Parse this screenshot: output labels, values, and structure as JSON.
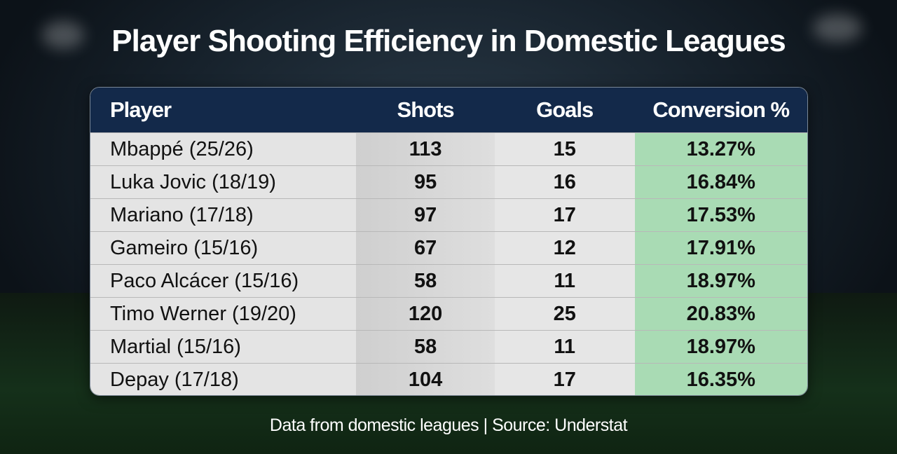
{
  "title": "Player Shooting Efficiency in Domestic Leagues",
  "headers": [
    "Player",
    "Shots",
    "Goals",
    "Conversion %"
  ],
  "rows": [
    {
      "player": "Mbappé (25/26)",
      "shots": "113",
      "goals": "15",
      "conversion": "13.27%"
    },
    {
      "player": "Luka Jovic (18/19)",
      "shots": "95",
      "goals": "16",
      "conversion": "16.84%"
    },
    {
      "player": "Mariano (17/18)",
      "shots": "97",
      "goals": "17",
      "conversion": "17.53%"
    },
    {
      "player": "Gameiro (15/16)",
      "shots": "67",
      "goals": "12",
      "conversion": "17.91%"
    },
    {
      "player": "Paco Alcácer (15/16)",
      "shots": "58",
      "goals": "11",
      "conversion": "18.97%"
    },
    {
      "player": "Timo Werner (19/20)",
      "shots": "120",
      "goals": "25",
      "conversion": "20.83%"
    },
    {
      "player": "Martial (15/16)",
      "shots": "58",
      "goals": "11",
      "conversion": "18.97%"
    },
    {
      "player": "Depay (17/18)",
      "shots": "104",
      "goals": "17",
      "conversion": "16.35%"
    }
  ],
  "footer": "Data from domestic leagues | Source: Understat"
}
